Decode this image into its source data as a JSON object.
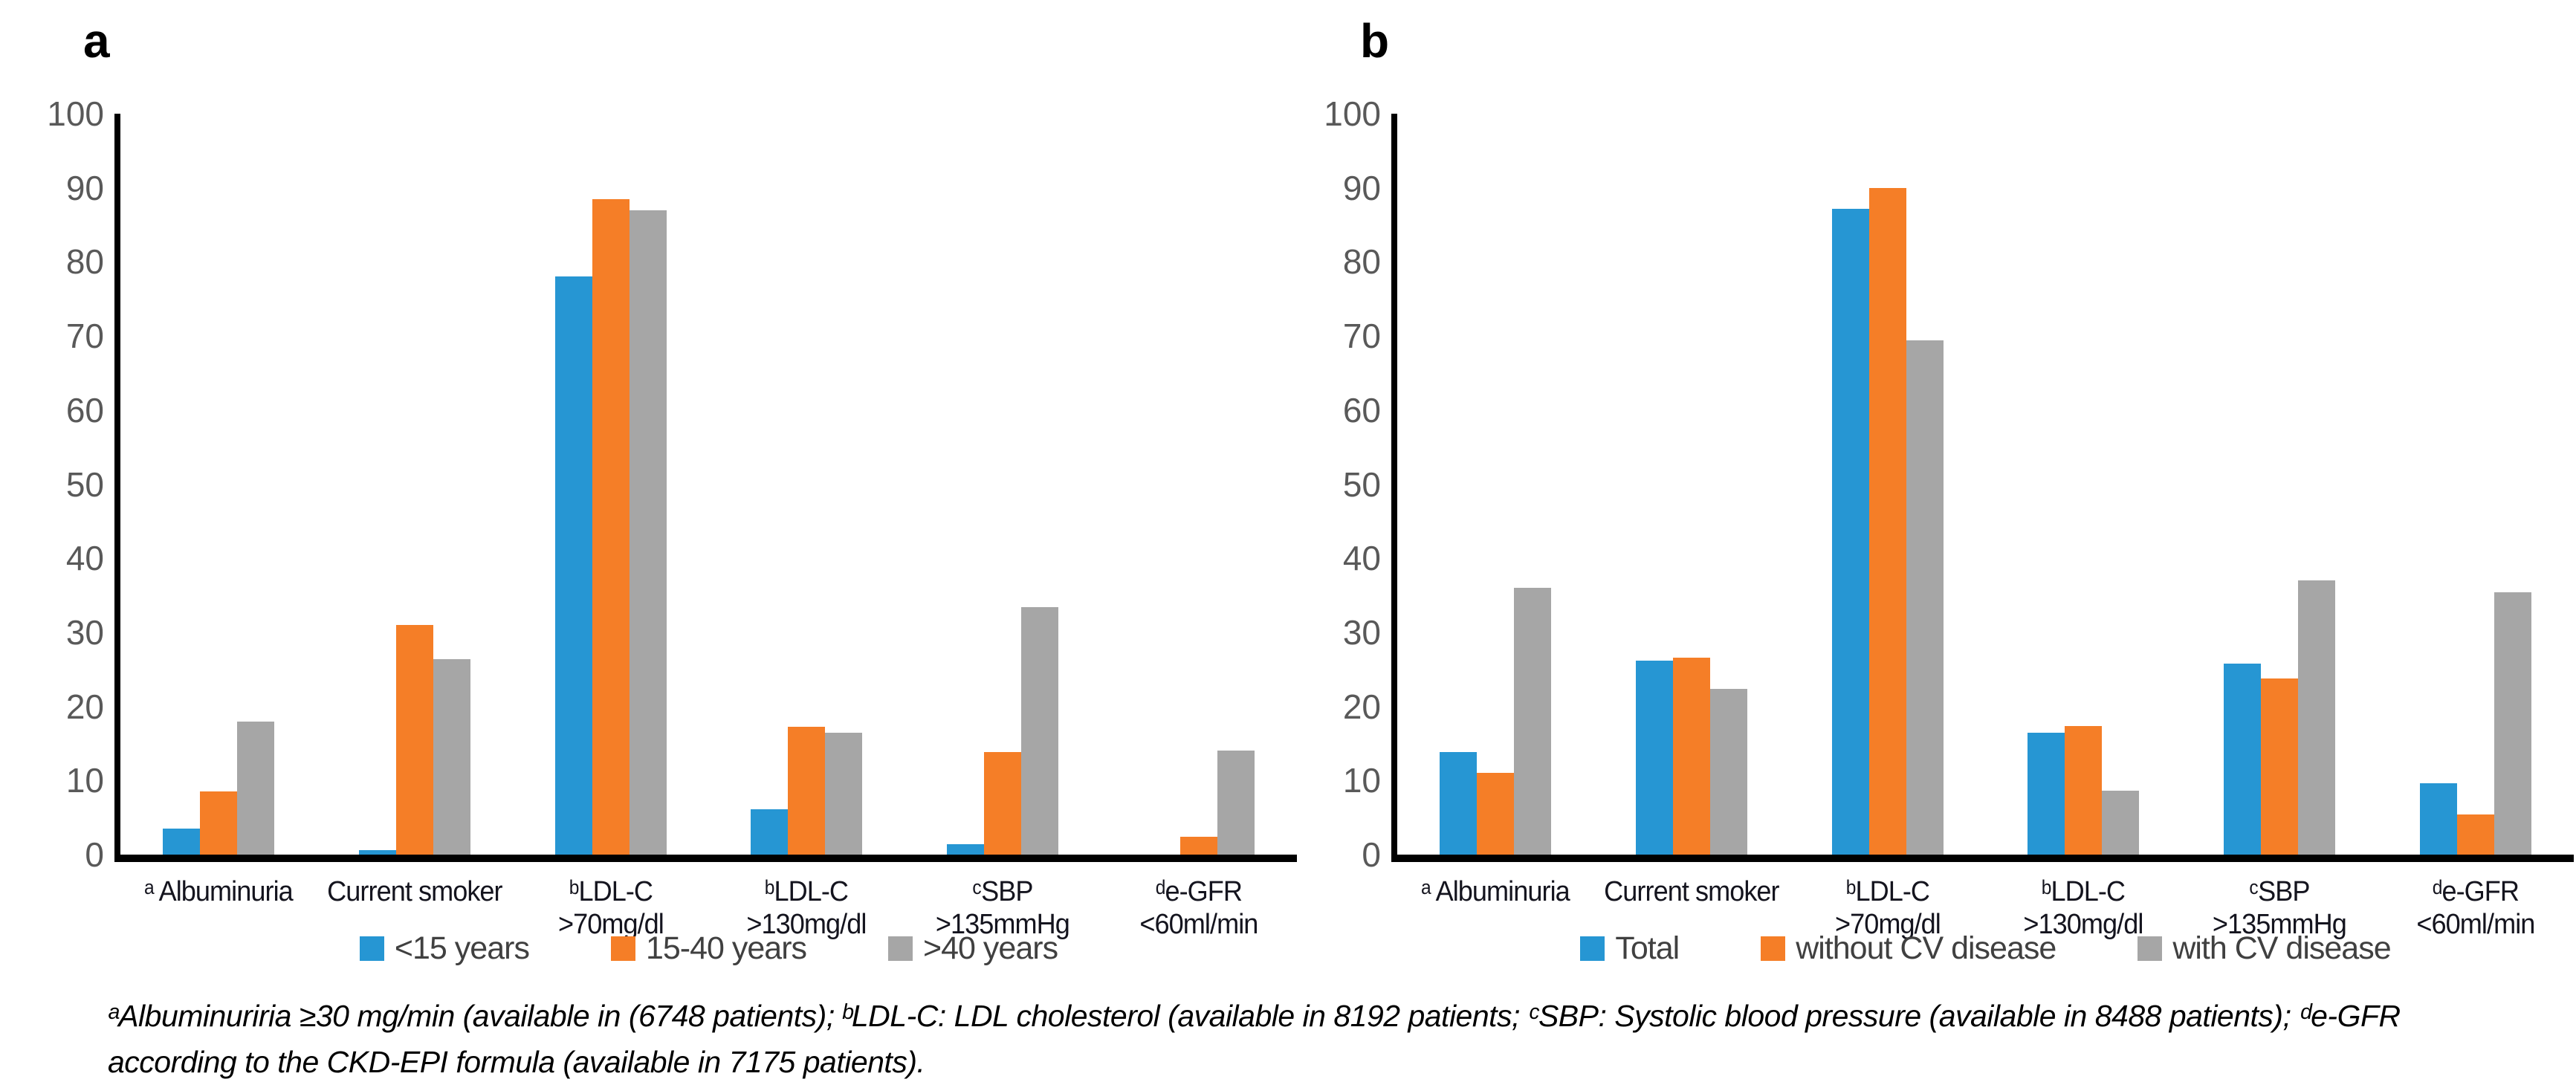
{
  "figure_title": "",
  "colors": {
    "blue": "#2696D3",
    "orange": "#F57E27",
    "gray": "#A6A6A6",
    "axis_line": "#000000",
    "tick_text": "#595959",
    "category_text": "#14141e",
    "legend_text": "#404040"
  },
  "axis": {
    "ylim": [
      0,
      100
    ],
    "ticks": [
      0,
      10,
      20,
      30,
      40,
      50,
      60,
      70,
      80,
      90,
      100
    ],
    "grid": false
  },
  "footnote": "ᵃAlbuminuriria ≥30 mg/min (available in (6748 patients); ᵇLDL-C: LDL cholesterol (available in 8192 patients; ᶜSBP: Systolic blood pressure (available in 8488 patients); ᵈe-GFR according to the CKD-EPI formula (available in 7175 patients).",
  "chart_data": [
    {
      "id": "a",
      "letter": "a",
      "type": "bar",
      "title": "",
      "xlabel": "",
      "ylabel": "",
      "ylim": [
        0,
        100
      ],
      "grid": false,
      "legend_position": "bottom",
      "categories": [
        "ᵃ Albuminuria",
        "Current smoker",
        "ᵇLDL-C >70mg/dl",
        "ᵇLDL-C >130mg/dl",
        "ᶜSBP >135mmHg",
        "ᵈe-GFR <60ml/min"
      ],
      "series": [
        {
          "name": "<15 years",
          "color": "blue",
          "values": [
            3.5,
            0.6,
            78,
            6.1,
            1.4,
            0
          ]
        },
        {
          "name": "15-40 years",
          "color": "orange",
          "values": [
            8.5,
            31,
            88.5,
            17.3,
            13.8,
            2.4
          ]
        },
        {
          "name": ">40 years",
          "color": "gray",
          "values": [
            18,
            26.4,
            87,
            16.4,
            33.4,
            14
          ]
        }
      ]
    },
    {
      "id": "b",
      "letter": "b",
      "type": "bar",
      "title": "",
      "xlabel": "",
      "ylabel": "",
      "ylim": [
        0,
        100
      ],
      "grid": false,
      "legend_position": "bottom",
      "categories": [
        "ᵃ Albuminuria",
        "Current smoker",
        "ᵇLDL-C >70mg/dl",
        "ᵇLDL-C >130mg/dl",
        "ᶜSBP >135mmHg",
        "ᵈe-GFR <60ml/min"
      ],
      "series": [
        {
          "name": "Total",
          "color": "blue",
          "values": [
            13.8,
            26.2,
            87.2,
            16.4,
            25.8,
            9.6
          ]
        },
        {
          "name": "without CV disease",
          "color": "orange",
          "values": [
            11,
            26.6,
            90,
            17.4,
            23.8,
            5.4
          ]
        },
        {
          "name": "with CV disease",
          "color": "gray",
          "values": [
            36,
            22.4,
            69.4,
            8.6,
            37,
            35.4
          ]
        }
      ]
    }
  ]
}
